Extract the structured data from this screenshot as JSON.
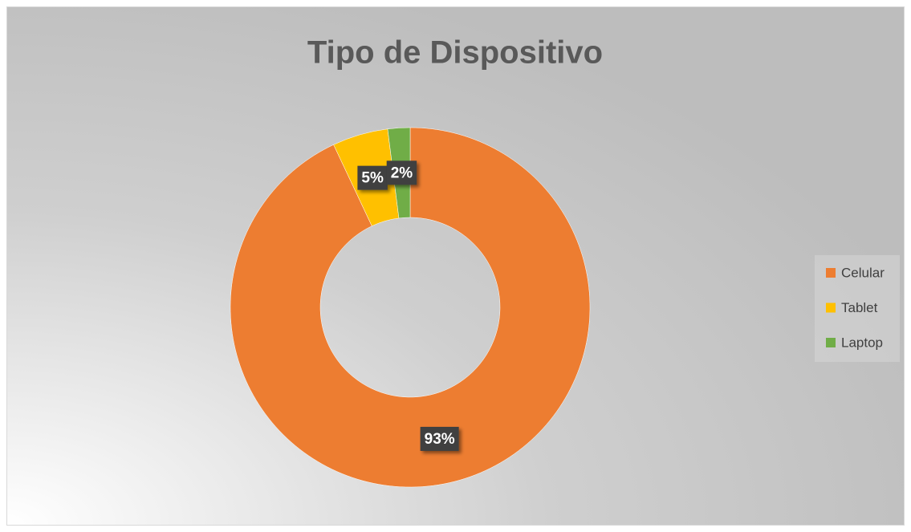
{
  "chart_data": {
    "type": "donut",
    "title": "Tipo de Dispositivo",
    "categories": [
      "Celular",
      "Tablet",
      "Laptop"
    ],
    "values": [
      93,
      5,
      2
    ],
    "value_labels": [
      "93%",
      "5%",
      "2%"
    ],
    "colors": [
      "#ed7d31",
      "#ffc000",
      "#70ad47"
    ],
    "legend": "right"
  }
}
